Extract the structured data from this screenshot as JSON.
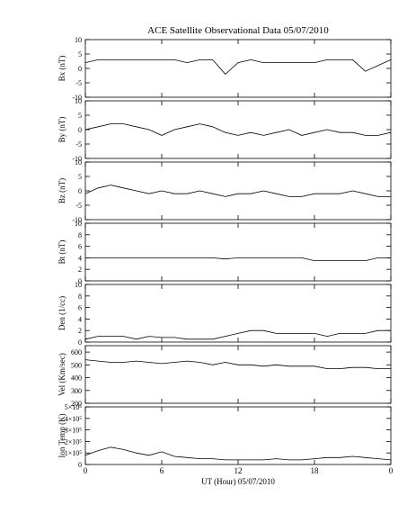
{
  "chart_data": [
    {
      "type": "line",
      "title": "ACE Satellite Observational Data   05/07/2010",
      "ylabel": "Bx (nT)",
      "x": [
        0,
        1,
        2,
        3,
        4,
        5,
        6,
        7,
        8,
        9,
        10,
        11,
        12,
        13,
        14,
        15,
        16,
        17,
        18,
        19,
        20,
        21,
        22,
        23,
        24
      ],
      "values": [
        2,
        3,
        3,
        3,
        3,
        3,
        3,
        3,
        2,
        3,
        3,
        -2,
        2,
        3,
        2,
        2,
        2,
        2,
        2,
        3,
        3,
        3,
        -1,
        1,
        3
      ],
      "xlim": [
        0,
        24
      ],
      "ylim": [
        -10,
        10
      ],
      "yticks": [
        -10,
        -5,
        0,
        5,
        10
      ],
      "color": "#000000"
    },
    {
      "type": "line",
      "ylabel": "By (nT)",
      "x": [
        0,
        1,
        2,
        3,
        4,
        5,
        6,
        7,
        8,
        9,
        10,
        11,
        12,
        13,
        14,
        15,
        16,
        17,
        18,
        19,
        20,
        21,
        22,
        23,
        24
      ],
      "values": [
        0,
        1,
        2,
        2,
        1,
        0,
        -2,
        0,
        1,
        2,
        1,
        -1,
        -2,
        -1,
        -2,
        -1,
        0,
        -2,
        -1,
        0,
        -1,
        -1,
        -2,
        -2,
        -1
      ],
      "xlim": [
        0,
        24
      ],
      "ylim": [
        -10,
        10
      ],
      "yticks": [
        -10,
        -5,
        0,
        5,
        10
      ],
      "color": "#000000"
    },
    {
      "type": "line",
      "ylabel": "Bz (nT)",
      "x": [
        0,
        1,
        2,
        3,
        4,
        5,
        6,
        7,
        8,
        9,
        10,
        11,
        12,
        13,
        14,
        15,
        16,
        17,
        18,
        19,
        20,
        21,
        22,
        23,
        24
      ],
      "values": [
        -1,
        1,
        2,
        1,
        0,
        -1,
        0,
        -1,
        -1,
        0,
        -1,
        -2,
        -1,
        -1,
        0,
        -1,
        -2,
        -2,
        -1,
        -1,
        -1,
        0,
        -1,
        -2,
        -2
      ],
      "xlim": [
        0,
        24
      ],
      "ylim": [
        -10,
        10
      ],
      "yticks": [
        -10,
        -5,
        0,
        5,
        10
      ],
      "color": "#000000"
    },
    {
      "type": "line",
      "ylabel": "Bt (nT)",
      "x": [
        0,
        1,
        2,
        3,
        4,
        5,
        6,
        7,
        8,
        9,
        10,
        11,
        12,
        13,
        14,
        15,
        16,
        17,
        18,
        19,
        20,
        21,
        22,
        23,
        24
      ],
      "values": [
        4,
        4,
        4,
        4,
        4,
        4,
        4,
        4,
        4,
        4,
        4,
        3.8,
        4,
        4,
        4,
        4,
        4,
        4,
        3.5,
        3.5,
        3.5,
        3.5,
        3.5,
        4,
        4
      ],
      "xlim": [
        0,
        24
      ],
      "ylim": [
        0,
        10
      ],
      "yticks": [
        0,
        2,
        4,
        6,
        8,
        10
      ],
      "color": "#000000"
    },
    {
      "type": "line",
      "ylabel": "Den (1/cc)",
      "x": [
        0,
        1,
        2,
        3,
        4,
        5,
        6,
        7,
        8,
        9,
        10,
        11,
        12,
        13,
        14,
        15,
        16,
        17,
        18,
        19,
        20,
        21,
        22,
        23,
        24
      ],
      "values": [
        0.5,
        1,
        1,
        1,
        0.5,
        1,
        0.8,
        0.8,
        0.5,
        0.5,
        0.5,
        1,
        1.5,
        2,
        2,
        1.5,
        1.5,
        1.5,
        1.5,
        1,
        1.5,
        1.5,
        1.5,
        2,
        2
      ],
      "xlim": [
        0,
        24
      ],
      "ylim": [
        0,
        10
      ],
      "yticks": [
        0,
        2,
        4,
        6,
        8,
        10
      ],
      "color": "#000000"
    },
    {
      "type": "line",
      "ylabel": "Vel (Km/sec)",
      "x": [
        0,
        1,
        2,
        3,
        4,
        5,
        6,
        7,
        8,
        9,
        10,
        11,
        12,
        13,
        14,
        15,
        16,
        17,
        18,
        19,
        20,
        21,
        22,
        23,
        24
      ],
      "values": [
        540,
        530,
        520,
        520,
        530,
        520,
        510,
        520,
        530,
        520,
        500,
        520,
        500,
        500,
        490,
        500,
        490,
        490,
        490,
        470,
        470,
        480,
        480,
        470,
        470
      ],
      "xlim": [
        0,
        24
      ],
      "ylim": [
        200,
        650
      ],
      "yticks": [
        200,
        300,
        400,
        500,
        600
      ],
      "color": "#000000"
    },
    {
      "type": "line",
      "ylabel": "Ion Temp (K)",
      "xlabel": "UT (Hour)   05/07/2010",
      "x": [
        0,
        1,
        2,
        3,
        4,
        5,
        6,
        7,
        8,
        9,
        10,
        11,
        12,
        13,
        14,
        15,
        16,
        17,
        18,
        19,
        20,
        21,
        22,
        23,
        24
      ],
      "values": [
        80000,
        120000,
        150000,
        130000,
        100000,
        80000,
        110000,
        70000,
        60000,
        50000,
        50000,
        40000,
        40000,
        40000,
        40000,
        50000,
        40000,
        40000,
        50000,
        60000,
        60000,
        70000,
        60000,
        50000,
        40000
      ],
      "xlim": [
        0,
        24
      ],
      "ylim": [
        0,
        500000
      ],
      "yticks": [
        0,
        {
          "value": 100000,
          "label": "1×10⁵"
        },
        {
          "value": 200000,
          "label": "2×10⁵"
        },
        {
          "value": 300000,
          "label": "3×10⁵"
        },
        {
          "value": 400000,
          "label": "4×10⁵"
        },
        {
          "value": 500000,
          "label": "5×10⁵"
        }
      ],
      "xticks": [
        0,
        6,
        12,
        18,
        {
          "value": 24,
          "label": "0"
        }
      ],
      "color": "#000000"
    }
  ]
}
